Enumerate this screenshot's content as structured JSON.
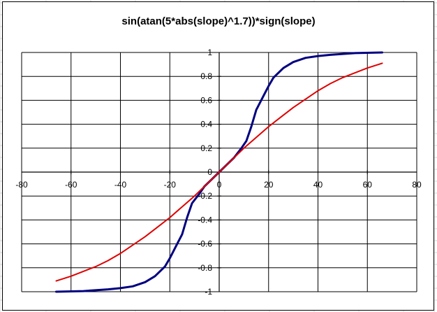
{
  "chart_data": {
    "type": "line",
    "title": "sin(atan(5*abs(slope)^1.7))*sign(slope)",
    "xlabel": "",
    "ylabel": "",
    "xlim": [
      -80,
      80
    ],
    "ylim": [
      -1,
      1
    ],
    "x_ticks": [
      -80,
      -60,
      -40,
      -20,
      0,
      20,
      40,
      60,
      80
    ],
    "y_ticks": [
      1,
      0.8,
      0.6,
      0.4,
      0.2,
      0,
      -0.2,
      -0.4,
      -0.6,
      -0.8,
      -1
    ],
    "y_tick_labels": [
      "1",
      "0.8",
      "0.6",
      "0.4",
      "0.2",
      "0",
      "-0.2",
      "-0.4",
      "-0.6",
      "-0.8",
      "-1"
    ],
    "grid": true,
    "legend": "none",
    "series": [
      {
        "color": "#000080",
        "points": [
          [
            -66,
            -1.0
          ],
          [
            -55,
            -0.995
          ],
          [
            -45,
            -0.98
          ],
          [
            -40,
            -0.97
          ],
          [
            -35,
            -0.955
          ],
          [
            -30,
            -0.92
          ],
          [
            -26,
            -0.87
          ],
          [
            -22,
            -0.79
          ],
          [
            -20,
            -0.72
          ],
          [
            -18,
            -0.64
          ],
          [
            -15,
            -0.52
          ],
          [
            -13,
            -0.38
          ],
          [
            -11,
            -0.26
          ],
          [
            -8,
            -0.18
          ],
          [
            -6,
            -0.12
          ],
          [
            -3,
            -0.06
          ],
          [
            0,
            0.0
          ],
          [
            3,
            0.06
          ],
          [
            6,
            0.12
          ],
          [
            9,
            0.2
          ],
          [
            11,
            0.26
          ],
          [
            13,
            0.38
          ],
          [
            15,
            0.52
          ],
          [
            18,
            0.64
          ],
          [
            20,
            0.72
          ],
          [
            22,
            0.79
          ],
          [
            26,
            0.87
          ],
          [
            30,
            0.92
          ],
          [
            35,
            0.955
          ],
          [
            40,
            0.97
          ],
          [
            45,
            0.98
          ],
          [
            55,
            0.995
          ],
          [
            66,
            1.0
          ]
        ]
      },
      {
        "color": "#e00000",
        "points": [
          [
            -66,
            -0.91
          ],
          [
            -60,
            -0.87
          ],
          [
            -55,
            -0.83
          ],
          [
            -50,
            -0.79
          ],
          [
            -45,
            -0.74
          ],
          [
            -40,
            -0.68
          ],
          [
            -35,
            -0.61
          ],
          [
            -30,
            -0.54
          ],
          [
            -25,
            -0.46
          ],
          [
            -20,
            -0.38
          ],
          [
            -15,
            -0.29
          ],
          [
            -10,
            -0.2
          ],
          [
            -5,
            -0.1
          ],
          [
            0,
            0.0
          ],
          [
            5,
            0.1
          ],
          [
            10,
            0.2
          ],
          [
            15,
            0.29
          ],
          [
            20,
            0.38
          ],
          [
            25,
            0.46
          ],
          [
            30,
            0.54
          ],
          [
            35,
            0.61
          ],
          [
            40,
            0.68
          ],
          [
            45,
            0.74
          ],
          [
            50,
            0.79
          ],
          [
            55,
            0.83
          ],
          [
            60,
            0.87
          ],
          [
            66,
            0.91
          ]
        ]
      }
    ]
  }
}
